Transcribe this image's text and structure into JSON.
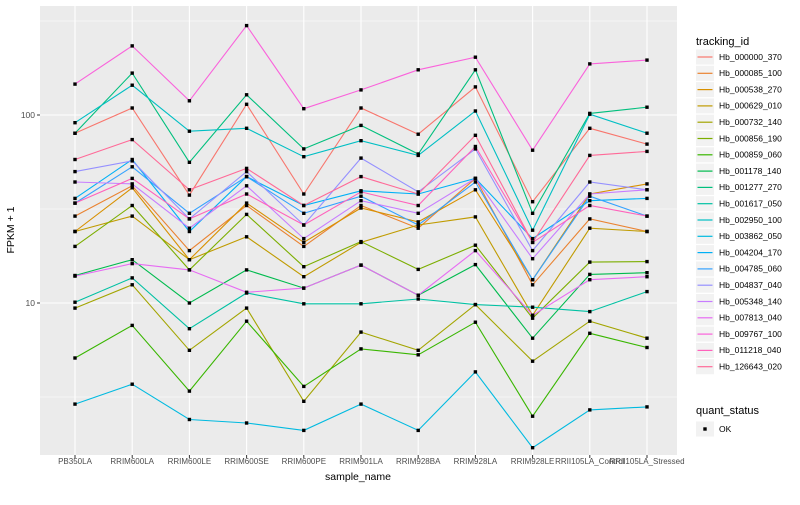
{
  "chart_data": {
    "type": "line",
    "title": "",
    "xlabel": "sample_name",
    "ylabel": "FPKM + 1",
    "y_scale": "log10",
    "ylim": [
      1.5,
      380
    ],
    "y_ticks": [
      100,
      10
    ],
    "y_minor": [
      316.2,
      31.62,
      3.162
    ],
    "grid": true,
    "panel_bg": "#EBEBEB",
    "grid_color": "#FFFFFF",
    "tick_label_color": "#4D4D4D",
    "point_color": "#000000",
    "legend_title": "tracking_id",
    "legend_key_bg": "#F2F2F2",
    "legend2_title": "quant_status",
    "legend2_items": [
      "OK"
    ],
    "x_categories": [
      "PB350LA",
      "RRIM600LA",
      "RRIM600LE",
      "RRIM600SE",
      "RRIM600PE",
      "RRIM901LA",
      "RRIM928BA",
      "RRIM928LA",
      "RRIM928LE",
      "RRII105LA_Control",
      "RRII105LA_Stressed"
    ],
    "series": [
      {
        "name": "Hb_000000_370",
        "color": "#F8766D",
        "values": [
          80,
          109,
          37.5,
          114,
          38,
          109,
          79,
          141,
          34.6,
          85,
          70
        ]
      },
      {
        "name": "Hb_000085_100",
        "color": "#EA8331",
        "values": [
          29,
          42,
          19,
          33,
          20,
          33,
          25,
          46,
          12.5,
          28,
          24
        ]
      },
      {
        "name": "Hb_000538_270",
        "color": "#D89000",
        "values": [
          24,
          41,
          17,
          34,
          21,
          32,
          27,
          40,
          13.3,
          38,
          43
        ]
      },
      {
        "name": "Hb_000629_010",
        "color": "#C09B00",
        "values": [
          24,
          29,
          17,
          22.5,
          13.8,
          21,
          26,
          28.7,
          8.6,
          25,
          24
        ]
      },
      {
        "name": "Hb_000732_140",
        "color": "#A3A500",
        "values": [
          9.4,
          12.5,
          5.6,
          9.4,
          3.0,
          7.0,
          5.6,
          9.8,
          4.9,
          8.0,
          6.5
        ]
      },
      {
        "name": "Hb_000856_190",
        "color": "#7CAE00",
        "values": [
          20,
          33,
          15,
          29.6,
          15.6,
          21.2,
          15.1,
          20.3,
          8.3,
          16.5,
          16.6
        ]
      },
      {
        "name": "Hb_000859_060",
        "color": "#39B600",
        "values": [
          5.1,
          7.6,
          3.4,
          8.0,
          3.6,
          5.7,
          5.3,
          7.9,
          2.5,
          6.9,
          5.8
        ]
      },
      {
        "name": "Hb_001178_140",
        "color": "#00BB4E",
        "values": [
          14,
          17,
          10,
          15,
          12,
          15.9,
          11,
          16,
          6.5,
          14.2,
          14.5
        ]
      },
      {
        "name": "Hb_001277_270",
        "color": "#00BF7D",
        "values": [
          80,
          167,
          56,
          128,
          66,
          88,
          62,
          174,
          30,
          102,
          110
        ]
      },
      {
        "name": "Hb_001617_050",
        "color": "#00C1A3",
        "values": [
          10.1,
          13.6,
          7.3,
          11.3,
          9.9,
          9.9,
          10.5,
          9.8,
          9.5,
          9.0,
          11.5
        ]
      },
      {
        "name": "Hb_002950_100",
        "color": "#00BFC4",
        "values": [
          91,
          144,
          82,
          85,
          60,
          73,
          61,
          105,
          24.4,
          101,
          80
        ]
      },
      {
        "name": "Hb_003862_050",
        "color": "#00BAE0",
        "values": [
          2.9,
          3.7,
          2.4,
          2.3,
          2.1,
          2.9,
          2.1,
          4.3,
          1.7,
          2.7,
          2.8
        ]
      },
      {
        "name": "Hb_004204_170",
        "color": "#00B0F6",
        "values": [
          36,
          58,
          24,
          47,
          33,
          39.5,
          38,
          46,
          22,
          35,
          36
        ]
      },
      {
        "name": "Hb_004785_060",
        "color": "#35A2FF",
        "values": [
          34,
          53,
          30,
          47,
          30,
          37,
          26,
          44,
          13.3,
          37,
          29
        ]
      },
      {
        "name": "Hb_004837_040",
        "color": "#9590FF",
        "values": [
          50,
          57,
          28,
          50,
          26,
          59,
          39,
          66,
          19,
          44,
          40
        ]
      },
      {
        "name": "Hb_005348_140",
        "color": "#C77CFF",
        "values": [
          44,
          43,
          25,
          42,
          22,
          35,
          30,
          46,
          17.2,
          38,
          40
        ]
      },
      {
        "name": "Hb_007813_040",
        "color": "#E76BF3",
        "values": [
          13.9,
          16.2,
          15,
          11.4,
          12,
          15.9,
          11,
          19,
          8.6,
          13.3,
          13.8
        ]
      },
      {
        "name": "Hb_009767_100",
        "color": "#FA62DB",
        "values": [
          146,
          233,
          119,
          299,
          108,
          136,
          174,
          203,
          65,
          187,
          196
        ]
      },
      {
        "name": "Hb_011218_040",
        "color": "#FF62BC",
        "values": [
          34,
          46,
          28,
          38,
          26,
          39,
          33,
          68,
          21,
          33,
          29
        ]
      },
      {
        "name": "Hb_126643_020",
        "color": "#FF6A98",
        "values": [
          58,
          74,
          40,
          52,
          33,
          47,
          38,
          78,
          21,
          61,
          64
        ]
      }
    ]
  }
}
